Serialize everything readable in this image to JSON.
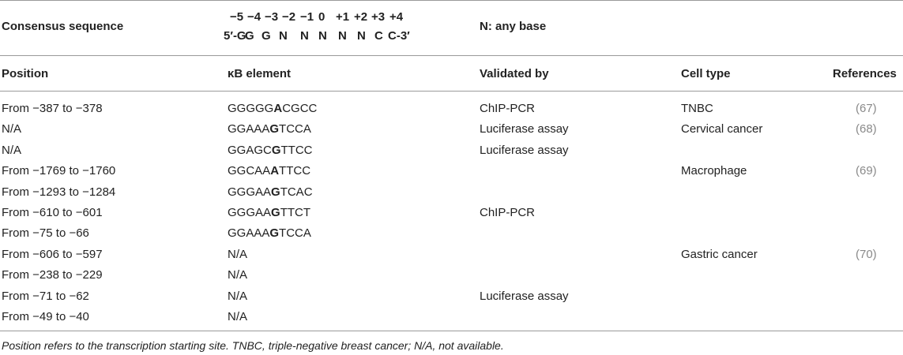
{
  "consensus": {
    "label": "Consensus sequence",
    "positions": [
      "−5",
      "−4",
      "−3",
      "−2",
      "−1",
      "0",
      "+1",
      "+2",
      "+3",
      "+4"
    ],
    "sequence": [
      "5′-G",
      "G",
      "G",
      "N",
      "N",
      "N",
      "N",
      "N",
      "C",
      "C-3′"
    ],
    "note": "N: any base"
  },
  "table": {
    "headers": {
      "position": "Position",
      "element": "κB element",
      "validated": "Validated by",
      "cell": "Cell type",
      "refs": "References"
    },
    "rows": [
      {
        "position": "From −387 to −378",
        "el_pre": "GGGGG",
        "el_bold": "A",
        "el_post": "CGCC",
        "validated": "ChIP-PCR",
        "cell": "TNBC",
        "ref": "(67)"
      },
      {
        "position": "N/A",
        "el_pre": "GGAAA",
        "el_bold": "G",
        "el_post": "TCCA",
        "validated": "Luciferase assay",
        "cell": "Cervical cancer",
        "ref": "(68)"
      },
      {
        "position": "N/A",
        "el_pre": "GGAGC",
        "el_bold": "G",
        "el_post": "TTCC",
        "validated": "Luciferase assay",
        "cell": "",
        "ref": ""
      },
      {
        "position": "From −1769 to −1760",
        "el_pre": "GGCAA",
        "el_bold": "A",
        "el_post": "TTCC",
        "validated": "",
        "cell": "Macrophage",
        "ref": "(69)"
      },
      {
        "position": "From −1293 to −1284",
        "el_pre": "GGGAA",
        "el_bold": "G",
        "el_post": "TCAC",
        "validated": "",
        "cell": "",
        "ref": ""
      },
      {
        "position": "From −610 to −601",
        "el_pre": "GGGAA",
        "el_bold": "G",
        "el_post": "TTCT",
        "validated": "ChIP-PCR",
        "cell": "",
        "ref": ""
      },
      {
        "position": "From −75 to −66",
        "el_pre": "GGAAA",
        "el_bold": "G",
        "el_post": "TCCA",
        "validated": "",
        "cell": "",
        "ref": ""
      },
      {
        "position": "From −606 to −597",
        "el_pre": "N/A",
        "el_bold": "",
        "el_post": "",
        "validated": "",
        "cell": "Gastric cancer",
        "ref": "(70)"
      },
      {
        "position": "From −238 to −229",
        "el_pre": "N/A",
        "el_bold": "",
        "el_post": "",
        "validated": "",
        "cell": "",
        "ref": ""
      },
      {
        "position": "From −71 to −62",
        "el_pre": "N/A",
        "el_bold": "",
        "el_post": "",
        "validated": "Luciferase assay",
        "cell": "",
        "ref": ""
      },
      {
        "position": "From −49 to −40",
        "el_pre": "N/A",
        "el_bold": "",
        "el_post": "",
        "validated": "",
        "cell": "",
        "ref": ""
      }
    ]
  },
  "footnote": "Position refers to the transcription starting site. TNBC, triple-negative breast cancer; N/A, not available."
}
